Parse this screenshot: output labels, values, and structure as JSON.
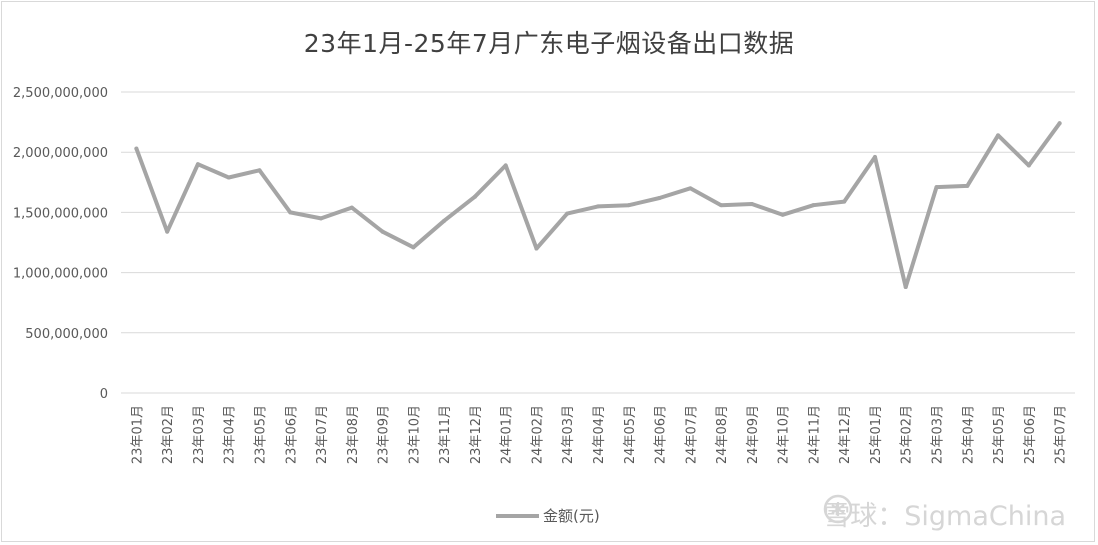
{
  "chart_data": {
    "type": "line",
    "title": "23年1月-25年7月广东电子烟设备出口数据",
    "xlabel": "",
    "ylabel": "",
    "categories": [
      "23年01月",
      "23年02月",
      "23年03月",
      "23年04月",
      "23年05月",
      "23年06月",
      "23年07月",
      "23年08月",
      "23年09月",
      "23年10月",
      "23年11月",
      "23年12月",
      "24年01月",
      "24年02月",
      "24年03月",
      "24年04月",
      "24年05月",
      "24年06月",
      "24年07月",
      "24年08月",
      "24年09月",
      "24年10月",
      "24年11月",
      "24年12月",
      "25年01月",
      "25年02月",
      "25年03月",
      "25年04月",
      "25年05月",
      "25年06月",
      "25年07月"
    ],
    "series": [
      {
        "name": "金额(元)",
        "color": "#a5a5a5",
        "values": [
          2030000000,
          1340000000,
          1900000000,
          1790000000,
          1850000000,
          1500000000,
          1450000000,
          1540000000,
          1340000000,
          1210000000,
          1430000000,
          1630000000,
          1890000000,
          1200000000,
          1490000000,
          1550000000,
          1560000000,
          1620000000,
          1700000000,
          1560000000,
          1570000000,
          1480000000,
          1560000000,
          1590000000,
          1960000000,
          880000000,
          1710000000,
          1720000000,
          2140000000,
          1890000000,
          2240000000
        ]
      }
    ],
    "ylim": [
      0,
      2500000000
    ],
    "yticks": [
      0,
      500000000,
      1000000000,
      1500000000,
      2000000000,
      2500000000
    ],
    "ytick_labels": [
      "0",
      "500,000,000",
      "1,000,000,000",
      "1,500,000,000",
      "2,000,000,000",
      "2,500,000,000"
    ],
    "grid": true,
    "legend_position": "bottom"
  },
  "watermark": {
    "text": "雪球：SigmaChina",
    "icon": "xueqiu-snowball-icon"
  }
}
